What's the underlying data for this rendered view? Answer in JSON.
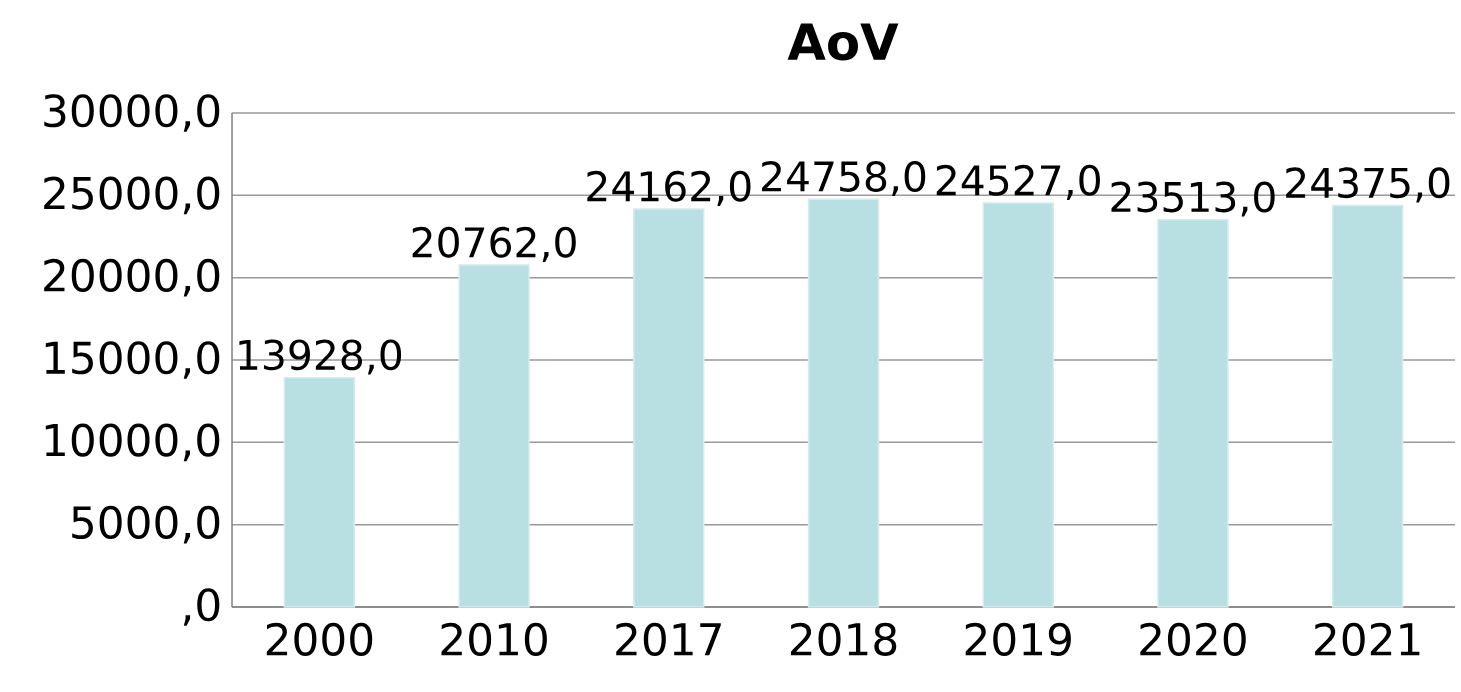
{
  "chart_data": {
    "type": "bar",
    "title": "AoV",
    "categories": [
      "2000",
      "2010",
      "2017",
      "2018",
      "2019",
      "2020",
      "2021"
    ],
    "values": [
      13928,
      20762,
      24162,
      24758,
      24527,
      23513,
      24375
    ],
    "value_labels": [
      "13928,0",
      "20762,0",
      "24162,0",
      "24758,0",
      "24527,0",
      "23513,0",
      "24375,0"
    ],
    "color": "#b8e0e3",
    "ylim": [
      0,
      30000
    ],
    "yticks": [
      {
        "value": 0,
        "label": ",0"
      },
      {
        "value": 5000,
        "label": "5000,0"
      },
      {
        "value": 10000,
        "label": "10000,0"
      },
      {
        "value": 15000,
        "label": "15000,0"
      },
      {
        "value": 20000,
        "label": "20000,0"
      },
      {
        "value": 25000,
        "label": "25000,0"
      },
      {
        "value": 30000,
        "label": "30000,0"
      }
    ],
    "grid": "y"
  }
}
